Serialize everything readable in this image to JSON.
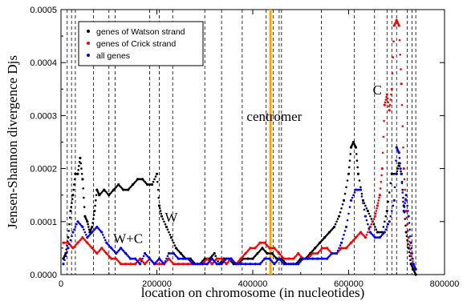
{
  "chart_data": {
    "type": "scatter",
    "xlabel": "location on chromosome (in nucleotides)",
    "ylabel": "Jensen-Shannon divergence Djs",
    "xlim": [
      0,
      800000
    ],
    "ylim": [
      0,
      0.0005
    ],
    "x_ticks": [
      0,
      200000,
      400000,
      600000,
      800000
    ],
    "x_tick_labels": [
      "0",
      "200000",
      "400000",
      "600000",
      "800000"
    ],
    "y_ticks": [
      0,
      0.0001,
      0.0002,
      0.0003,
      0.0004,
      0.0005
    ],
    "y_tick_labels": [
      "0.0000",
      "0.0001",
      "0.0002",
      "0.0003",
      "0.0004",
      "0.0005"
    ],
    "grid": false,
    "legend_position": "top-left",
    "series": [
      {
        "name": "genes of Watson strand",
        "color": "#000000",
        "x": [
          5000,
          10000,
          15000,
          20000,
          25000,
          30000,
          35000,
          40000,
          45000,
          50000,
          55000,
          60000,
          65000,
          70000,
          75000,
          80000,
          90000,
          100000,
          110000,
          120000,
          130000,
          140000,
          150000,
          160000,
          170000,
          180000,
          190000,
          200000,
          205000,
          210000,
          220000,
          230000,
          240000,
          250000,
          260000,
          270000,
          280000,
          290000,
          300000,
          310000,
          320000,
          330000,
          340000,
          350000,
          360000,
          370000,
          380000,
          390000,
          400000,
          410000,
          420000,
          430000,
          440000,
          450000,
          460000,
          470000,
          480000,
          490000,
          500000,
          510000,
          520000,
          530000,
          540000,
          550000,
          560000,
          570000,
          580000,
          590000,
          600000,
          605000,
          610000,
          615000,
          620000,
          630000,
          640000,
          650000,
          660000,
          670000,
          680000,
          690000,
          700000,
          705000,
          710000,
          715000,
          720000,
          725000,
          730000,
          735000,
          740000
        ],
        "values": [
          3e-05,
          4e-05,
          7e-05,
          0.00012,
          0.00015,
          0.00019,
          0.00019,
          0.00022,
          0.00018,
          0.00011,
          0.0001,
          8e-05,
          9e-05,
          0.00012,
          0.00016,
          0.00015,
          0.00016,
          0.00015,
          0.00016,
          0.00017,
          0.00016,
          0.00016,
          0.00017,
          0.00018,
          0.00018,
          0.00017,
          0.00017,
          0.00019,
          0.00013,
          0.00011,
          9e-05,
          7e-05,
          5e-05,
          4e-05,
          3e-05,
          3e-05,
          2e-05,
          2e-05,
          3e-05,
          3e-05,
          4e-05,
          2e-05,
          3e-05,
          3e-05,
          2e-05,
          2e-05,
          3e-05,
          3e-05,
          3e-05,
          4e-05,
          5e-05,
          4e-05,
          4e-05,
          3e-05,
          3e-05,
          2e-05,
          2e-05,
          2e-05,
          3e-05,
          3e-05,
          4e-05,
          5e-05,
          6e-05,
          7e-05,
          8e-05,
          9e-05,
          0.00011,
          0.00014,
          0.00019,
          0.00024,
          0.00025,
          0.00024,
          0.00019,
          0.00014,
          0.00012,
          0.0001,
          8e-05,
          8e-05,
          0.00012,
          0.00019,
          0.00019,
          0.00021,
          0.00019,
          0.00013,
          8e-05,
          5e-05,
          2e-05,
          1e-05,
          0.0
        ],
        "marker": "dot"
      },
      {
        "name": "genes of Crick strand",
        "color": "#ff0000",
        "x": [
          5000,
          15000,
          25000,
          35000,
          45000,
          55000,
          65000,
          75000,
          85000,
          95000,
          105000,
          115000,
          125000,
          135000,
          145000,
          155000,
          165000,
          175000,
          185000,
          195000,
          205000,
          215000,
          225000,
          235000,
          245000,
          255000,
          265000,
          275000,
          285000,
          295000,
          305000,
          315000,
          325000,
          335000,
          345000,
          355000,
          365000,
          375000,
          385000,
          395000,
          405000,
          415000,
          425000,
          435000,
          445000,
          455000,
          465000,
          475000,
          485000,
          495000,
          505000,
          515000,
          525000,
          535000,
          545000,
          555000,
          565000,
          575000,
          585000,
          595000,
          605000,
          615000,
          625000,
          635000,
          645000,
          655000,
          660000,
          665000,
          670000,
          675000,
          680000,
          685000,
          690000,
          695000,
          700000,
          705000,
          710000,
          715000,
          720000,
          725000,
          730000,
          735000,
          740000
        ],
        "values": [
          6e-05,
          6e-05,
          5e-05,
          6e-05,
          7e-05,
          6e-05,
          5e-05,
          4e-05,
          5e-05,
          4e-05,
          3e-05,
          3e-05,
          2e-05,
          2e-05,
          2e-05,
          2e-05,
          3e-05,
          2e-05,
          3e-05,
          2e-05,
          2e-05,
          2e-05,
          3e-05,
          2e-05,
          2e-05,
          2e-05,
          2e-05,
          2e-05,
          2e-05,
          2e-05,
          3e-05,
          2e-05,
          3e-05,
          3e-05,
          2e-05,
          3e-05,
          2e-05,
          3e-05,
          4e-05,
          5e-05,
          5e-05,
          6e-05,
          6e-05,
          5e-05,
          5e-05,
          4e-05,
          3e-05,
          3e-05,
          3e-05,
          4e-05,
          3e-05,
          3e-05,
          4e-05,
          4e-05,
          5e-05,
          5e-05,
          4e-05,
          4e-05,
          5e-05,
          5e-05,
          6e-05,
          7e-05,
          8e-05,
          7e-05,
          9e-05,
          0.00011,
          0.00013,
          0.00015,
          0.0002,
          0.00032,
          0.00034,
          0.00031,
          0.00035,
          0.00047,
          0.00048,
          0.00047,
          0.00036,
          0.0002,
          0.00012,
          7e-05,
          4e-05,
          2e-05,
          1e-05
        ],
        "marker": "dot"
      },
      {
        "name": "all genes",
        "color": "#0000ff",
        "x": [
          5000,
          15000,
          25000,
          35000,
          45000,
          55000,
          65000,
          75000,
          85000,
          95000,
          105000,
          115000,
          125000,
          135000,
          145000,
          155000,
          165000,
          175000,
          185000,
          195000,
          205000,
          215000,
          225000,
          235000,
          245000,
          255000,
          265000,
          275000,
          285000,
          295000,
          305000,
          315000,
          325000,
          335000,
          345000,
          355000,
          365000,
          375000,
          385000,
          395000,
          405000,
          415000,
          425000,
          435000,
          445000,
          455000,
          465000,
          475000,
          485000,
          495000,
          505000,
          515000,
          525000,
          535000,
          545000,
          555000,
          565000,
          575000,
          585000,
          595000,
          605000,
          615000,
          625000,
          635000,
          645000,
          655000,
          665000,
          675000,
          685000,
          695000,
          700000,
          705000,
          710000,
          715000,
          720000,
          725000,
          730000,
          735000,
          740000
        ],
        "values": [
          2e-05,
          5e-05,
          8e-05,
          0.0001,
          9e-05,
          7e-05,
          8e-05,
          9e-05,
          8e-05,
          6e-05,
          5e-05,
          4e-05,
          5e-05,
          4e-05,
          3e-05,
          3e-05,
          2e-05,
          4e-05,
          3e-05,
          2e-05,
          3e-05,
          2e-05,
          4e-05,
          4e-05,
          3e-05,
          3e-05,
          3e-05,
          2e-05,
          2e-05,
          2e-05,
          2e-05,
          3e-05,
          2e-05,
          2e-05,
          3e-05,
          3e-05,
          2e-05,
          2e-05,
          2e-05,
          2e-05,
          2e-05,
          2e-05,
          3e-05,
          3e-05,
          2e-05,
          3e-05,
          2e-05,
          2e-05,
          2e-05,
          2e-05,
          3e-05,
          3e-05,
          3e-05,
          3e-05,
          3e-05,
          3e-05,
          4e-05,
          4e-05,
          6e-05,
          9e-05,
          0.00014,
          0.00016,
          0.00016,
          0.00011,
          8e-05,
          7e-05,
          7e-05,
          8e-05,
          0.0001,
          0.00014,
          0.00024,
          0.00023,
          0.00019,
          0.00012,
          0.00015,
          0.00011,
          6e-05,
          2e-05,
          1e-05
        ],
        "marker": "dot"
      }
    ],
    "vertical_lines": {
      "dashed_x": [
        13000,
        22000,
        30000,
        68000,
        100000,
        113000,
        185000,
        205000,
        233000,
        300000,
        335000,
        378000,
        428000,
        437000,
        443000,
        455000,
        460000,
        543000,
        612000,
        654000,
        680000,
        690000,
        700000,
        722000,
        732000,
        740000
      ],
      "dashed_color": "#000000",
      "centromere_x": 437000,
      "centromere_color": "#ffa500"
    },
    "annotations": [
      {
        "text": "centromer",
        "x": 445000,
        "y": 0.00029
      },
      {
        "text": "W",
        "x": 230000,
        "y": 0.0001
      },
      {
        "text": "W+C",
        "x": 140000,
        "y": 6e-05
      },
      {
        "text": "C",
        "x": 660000,
        "y": 0.00034
      }
    ]
  }
}
